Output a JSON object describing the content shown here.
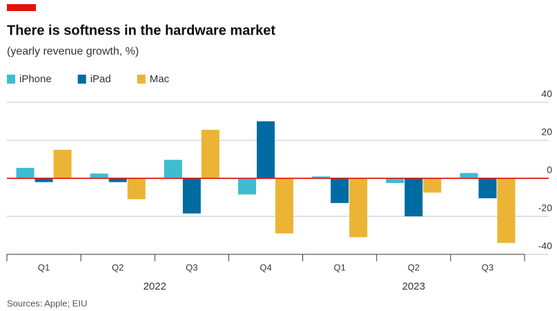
{
  "chart_data": {
    "type": "bar",
    "title": "There is softness in the hardware market",
    "subtitle": "(yearly revenue growth, %)",
    "source": "Sources: Apple; EIU",
    "category_groups": [
      {
        "name": "2022",
        "categories": [
          "Q1",
          "Q2",
          "Q3",
          "Q4"
        ]
      },
      {
        "name": "2023",
        "categories": [
          "Q1",
          "Q2",
          "Q3"
        ]
      }
    ],
    "series": [
      {
        "name": "iPhone",
        "color": "#3ebcd2",
        "values": [
          5.5,
          2.5,
          9.7,
          -8.5,
          1,
          -2.5,
          2.8
        ]
      },
      {
        "name": "iPad",
        "color": "#006ba2",
        "values": [
          -2,
          -2,
          -18.5,
          30,
          -13,
          -20,
          -10.5
        ]
      },
      {
        "name": "Mac",
        "color": "#ebb434",
        "values": [
          15,
          -11,
          25.5,
          -29,
          -31,
          -7.5,
          -34
        ]
      }
    ],
    "ylim": [
      -40,
      40
    ],
    "yticks": [
      40,
      20,
      0,
      -20,
      -40
    ],
    "grid": true,
    "legend": "top-left"
  }
}
